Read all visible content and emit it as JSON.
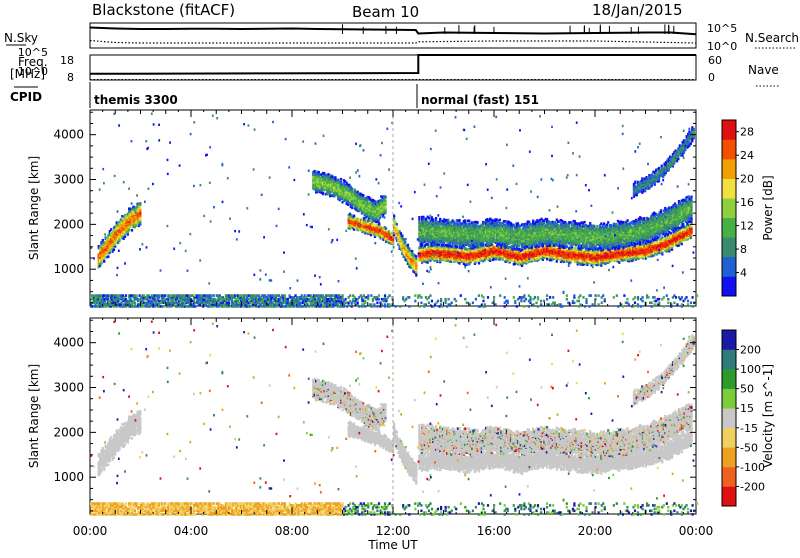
{
  "header": {
    "title": "Blackstone (fitACF)",
    "beam": "Beam 10",
    "date": "18/Jan/2015"
  },
  "chart_data": [
    {
      "type": "line",
      "panel": "noise",
      "left_label_lines": [
        "N.Sky"
      ],
      "right_label_lines": [
        "N.Search"
      ],
      "left_ticks": [
        "10^5",
        "10^0"
      ],
      "right_ticks": [
        "10^5",
        "10^0"
      ],
      "series": [
        {
          "style": "solid",
          "x": [
            0,
            0.5,
            1,
            1.5,
            2,
            3,
            4,
            5,
            6,
            7,
            8,
            9,
            10,
            11,
            12,
            12.9,
            13,
            14,
            16,
            18,
            20,
            22,
            23,
            24
          ],
          "y": [
            0.82,
            0.8,
            0.78,
            0.77,
            0.76,
            0.76,
            0.77,
            0.77,
            0.76,
            0.77,
            0.78,
            0.76,
            0.75,
            0.74,
            0.73,
            0.72,
            0.58,
            0.62,
            0.6,
            0.58,
            0.6,
            0.62,
            0.62,
            0.55
          ]
        },
        {
          "style": "dotted",
          "x": [
            0,
            1,
            2,
            4,
            6,
            8,
            10,
            12,
            12.9,
            13,
            16,
            20,
            24
          ],
          "y": [
            0.3,
            0.22,
            0.2,
            0.2,
            0.2,
            0.2,
            0.2,
            0.2,
            0.2,
            0.25,
            0.28,
            0.28,
            0.2
          ]
        }
      ]
    },
    {
      "type": "line",
      "panel": "frequency",
      "left_label_lines": [
        "Freq.",
        "[MHz]"
      ],
      "right_label_lines": [
        "Nave"
      ],
      "left_ticks": [
        "18",
        "8"
      ],
      "right_ticks": [
        "60",
        "0"
      ],
      "series": [
        {
          "name": "Freq.",
          "style": "solid",
          "x": [
            0,
            13,
            13,
            24
          ],
          "y": [
            10.5,
            10.8,
            18,
            18
          ]
        },
        {
          "name": "Nave",
          "style": "dotted",
          "x": [
            0,
            24
          ],
          "y": [
            1,
            1
          ]
        }
      ]
    },
    {
      "type": "table",
      "panel": "cpid",
      "label": "CPID",
      "segments": [
        {
          "start_hour": 0,
          "text": "themis 3300"
        },
        {
          "start_hour": 12.95,
          "text": "normal (fast) 151"
        }
      ]
    },
    {
      "type": "heatmap",
      "panel": "power",
      "ylabel": "Slant Range [km]",
      "yticks": [
        1000,
        2000,
        3000,
        4000
      ],
      "ylim": [
        180,
        4550
      ],
      "xlim": [
        0,
        24
      ],
      "colorbar_label": "Power [dB]",
      "colorbar_ticks": [
        4,
        8,
        12,
        16,
        20,
        24,
        28
      ],
      "colorbar_range": [
        0,
        30
      ],
      "colors": [
        "#1010f0",
        "#2060d0",
        "#3a8a70",
        "#46b046",
        "#90d040",
        "#f0e040",
        "#f0a000",
        "#f05000",
        "#e01010"
      ],
      "bands": [
        {
          "x": [
            0.3,
            0.6,
            1.0,
            1.5,
            2.0
          ],
          "center": [
            1300,
            1500,
            1800,
            2100,
            2300
          ],
          "width": 520,
          "peak": 24
        },
        {
          "x": [
            8.8,
            9.5,
            10.2,
            10.8,
            11.3,
            11.7
          ],
          "center": [
            3000,
            2900,
            2700,
            2450,
            2300,
            2500
          ],
          "width": 480,
          "peak": 14
        },
        {
          "x": [
            10.2,
            10.8,
            11.4,
            12.0
          ],
          "center": [
            2100,
            2000,
            1900,
            1700
          ],
          "width": 320,
          "peak": 26
        },
        {
          "x": [
            12.0,
            12.3,
            12.6,
            12.9
          ],
          "center": [
            2000,
            1600,
            1300,
            1100
          ],
          "width": 420,
          "peak": 22
        },
        {
          "x": [
            13.0,
            13.5,
            14,
            15,
            16,
            17,
            18,
            19,
            20,
            21,
            22,
            22.8,
            23.3,
            23.8
          ],
          "center": [
            1350,
            1400,
            1380,
            1320,
            1450,
            1300,
            1450,
            1350,
            1300,
            1380,
            1450,
            1600,
            1750,
            1900
          ],
          "width": 380,
          "peak": 28
        },
        {
          "x": [
            13.0,
            14,
            15,
            16,
            17,
            18,
            19,
            20,
            21,
            22,
            22.8,
            23.3,
            23.8
          ],
          "center": [
            1900,
            1850,
            1800,
            1850,
            1750,
            1850,
            1800,
            1750,
            1800,
            1900,
            2100,
            2250,
            2400
          ],
          "width": 600,
          "peak": 12
        },
        {
          "x": [
            21.5,
            22.2,
            22.8,
            23.4,
            23.9
          ],
          "center": [
            2800,
            3000,
            3300,
            3700,
            4100
          ],
          "width": 300,
          "peak": 8
        }
      ],
      "ground_strip": {
        "range": [
          200,
          450
        ],
        "x": [
          0,
          24
        ],
        "peak": 10
      }
    },
    {
      "type": "heatmap",
      "panel": "velocity",
      "ylabel": "Slant Range [km]",
      "yticks": [
        1000,
        2000,
        3000,
        4000
      ],
      "ylim": [
        180,
        4550
      ],
      "xlim": [
        0,
        24
      ],
      "colorbar_label": "Velocity [m s^-1]",
      "colorbar_ticks": [
        200,
        100,
        50,
        15,
        -15,
        -50,
        -100,
        -200
      ],
      "colors": [
        "#1a1aa8",
        "#2f7a7a",
        "#2e9a2e",
        "#7acc3a",
        "#c8c8c8",
        "#f0d060",
        "#f0a020",
        "#f06020",
        "#e01010"
      ],
      "ground_strip": {
        "range": [
          200,
          500
        ],
        "x": [
          0,
          24
        ]
      }
    }
  ],
  "x_axis": {
    "ticks": [
      "00:00",
      "04:00",
      "08:00",
      "12:00",
      "16:00",
      "20:00",
      "00:00"
    ],
    "label": "Time UT"
  }
}
